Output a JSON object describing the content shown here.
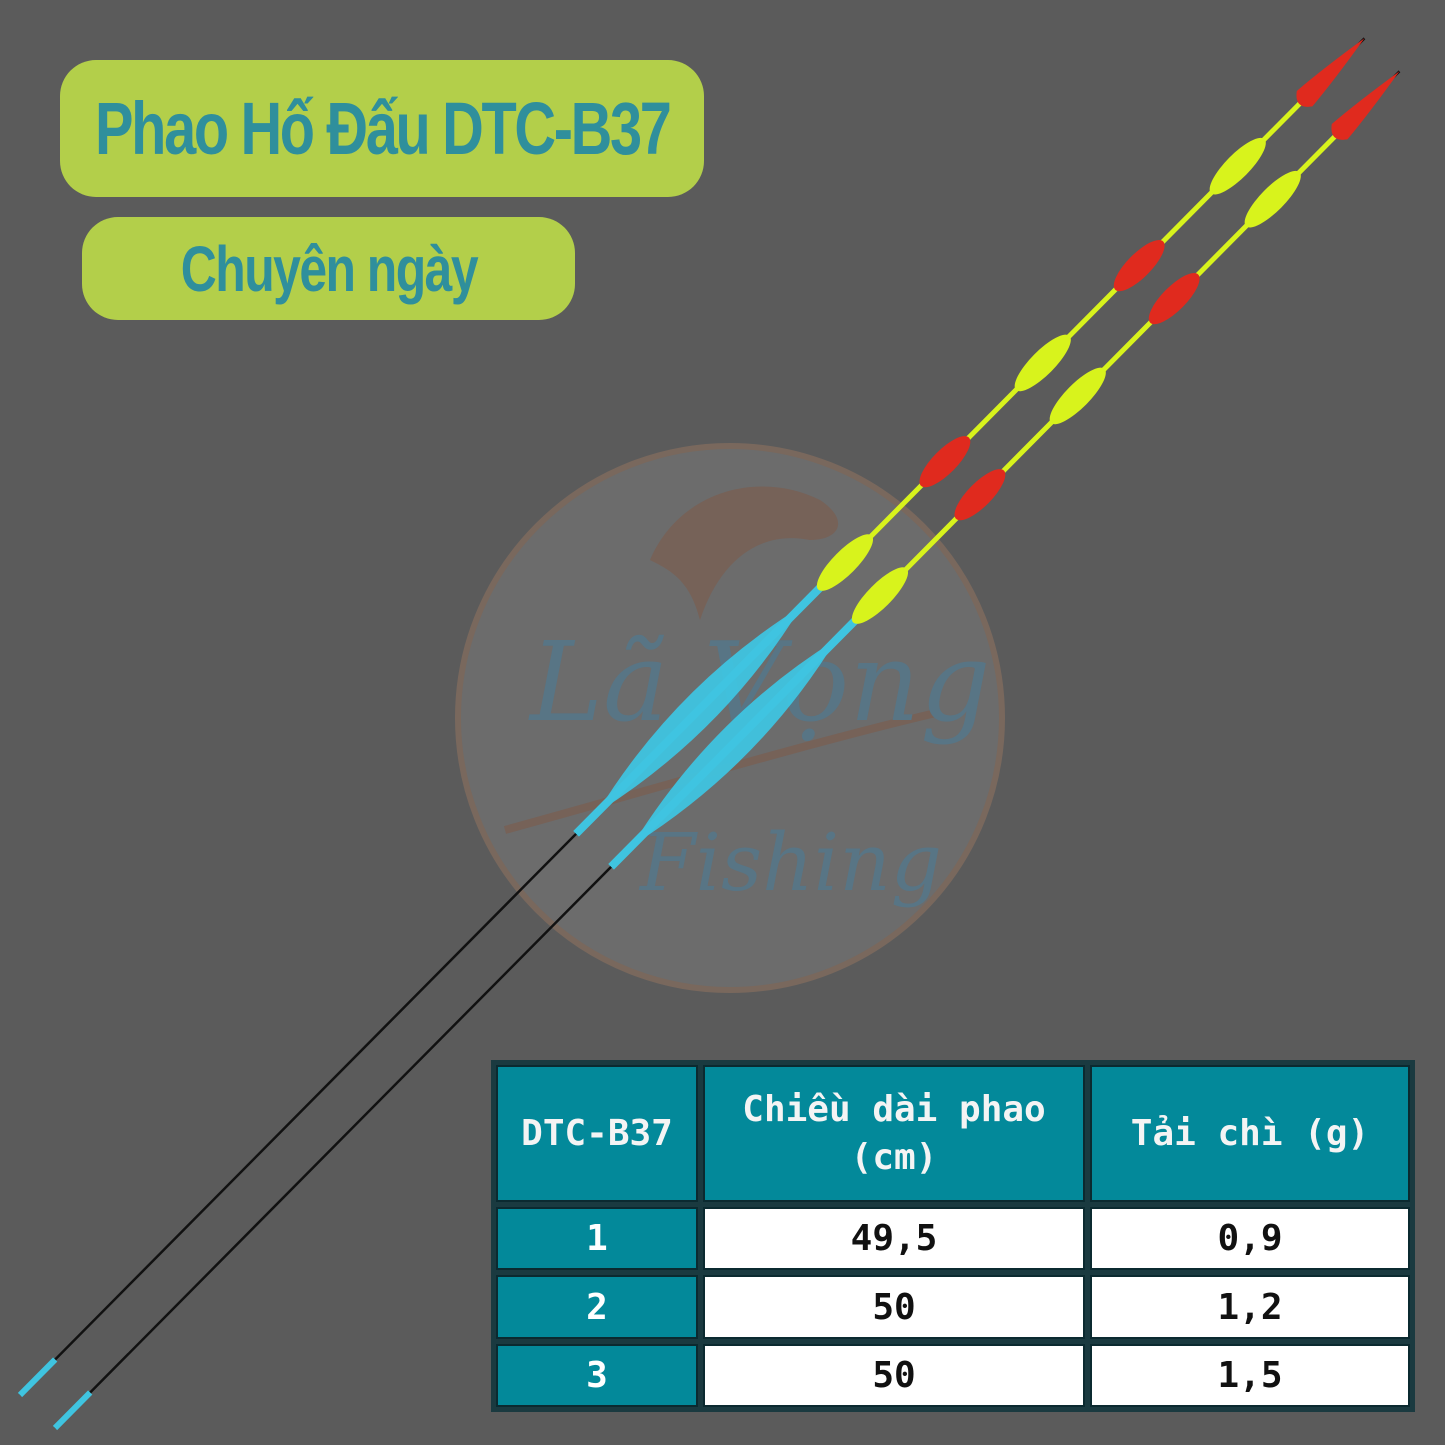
{
  "title": "Phao Hố Đấu DTC-B37",
  "subtitle": "Chuyên ngày",
  "watermark": {
    "line1": "Lã Vọng",
    "line2": "Fishing"
  },
  "colors": {
    "background": "#5b5b5b",
    "pill": "#b3cf4a",
    "pill_text": "#2f8f9c",
    "table_header": "#03899a",
    "float_red": "#e02a1e",
    "float_yellow": "#d8f31c",
    "float_body": "#3fc4e0"
  },
  "table": {
    "headers": [
      "DTC-B37",
      "Chiều dài phao (cm)",
      "Tải chì (g)"
    ],
    "rows": [
      {
        "id": "1",
        "length": "49,5",
        "load": "0,9"
      },
      {
        "id": "2",
        "length": "50",
        "load": "1,2"
      },
      {
        "id": "3",
        "length": "50",
        "load": "1,5"
      }
    ]
  }
}
